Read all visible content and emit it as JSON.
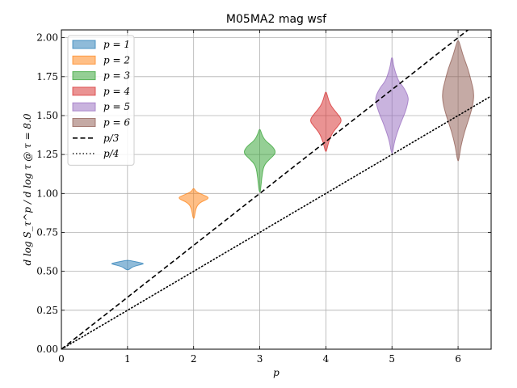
{
  "chart_data": {
    "type": "violin",
    "title": "M05MA2 mag wsf",
    "xlabel": "p",
    "ylabel": "d log S_τ^p / d log τ @ τ = 8.0",
    "xlim": [
      0,
      6.5
    ],
    "ylim": [
      0,
      2.05
    ],
    "xticks": [
      "0",
      "1",
      "2",
      "3",
      "4",
      "5",
      "6"
    ],
    "yticks": [
      "0.00",
      "0.25",
      "0.50",
      "0.75",
      "1.00",
      "1.25",
      "1.50",
      "1.75",
      "2.00"
    ],
    "grid": true,
    "legend_position": "top-left",
    "violins": [
      {
        "name": "p = 1",
        "position": 1,
        "min": 0.51,
        "max": 0.57,
        "median": 0.55,
        "color": "#1f77b4",
        "profile": [
          [
            0.51,
            0.02
          ],
          [
            0.53,
            0.08
          ],
          [
            0.545,
            0.22
          ],
          [
            0.55,
            0.25
          ],
          [
            0.56,
            0.15
          ],
          [
            0.57,
            0.02
          ]
        ]
      },
      {
        "name": "p = 2",
        "position": 2,
        "min": 0.84,
        "max": 1.03,
        "median": 0.97,
        "color": "#ff7f0e",
        "profile": [
          [
            0.84,
            0.01
          ],
          [
            0.9,
            0.03
          ],
          [
            0.94,
            0.08
          ],
          [
            0.97,
            0.25
          ],
          [
            0.99,
            0.15
          ],
          [
            1.01,
            0.04
          ],
          [
            1.03,
            0.01
          ]
        ]
      },
      {
        "name": "p = 3",
        "position": 3,
        "min": 1.01,
        "max": 1.41,
        "median": 1.26,
        "color": "#2ca02c",
        "profile": [
          [
            1.01,
            0.01
          ],
          [
            1.1,
            0.03
          ],
          [
            1.18,
            0.06
          ],
          [
            1.22,
            0.15
          ],
          [
            1.26,
            0.25
          ],
          [
            1.3,
            0.2
          ],
          [
            1.34,
            0.08
          ],
          [
            1.38,
            0.03
          ],
          [
            1.41,
            0.01
          ]
        ]
      },
      {
        "name": "p = 4",
        "position": 4,
        "min": 1.27,
        "max": 1.65,
        "median": 1.47,
        "color": "#d62728",
        "profile": [
          [
            1.27,
            0.01
          ],
          [
            1.33,
            0.04
          ],
          [
            1.39,
            0.1
          ],
          [
            1.43,
            0.18
          ],
          [
            1.47,
            0.25
          ],
          [
            1.52,
            0.16
          ],
          [
            1.56,
            0.08
          ],
          [
            1.6,
            0.04
          ],
          [
            1.65,
            0.01
          ]
        ]
      },
      {
        "name": "p = 5",
        "position": 5,
        "min": 1.26,
        "max": 1.87,
        "median": 1.61,
        "color": "#9467bd",
        "profile": [
          [
            1.26,
            0.01
          ],
          [
            1.34,
            0.04
          ],
          [
            1.44,
            0.12
          ],
          [
            1.52,
            0.2
          ],
          [
            1.58,
            0.24
          ],
          [
            1.62,
            0.25
          ],
          [
            1.68,
            0.18
          ],
          [
            1.72,
            0.1
          ],
          [
            1.78,
            0.05
          ],
          [
            1.83,
            0.02
          ],
          [
            1.87,
            0.01
          ]
        ]
      },
      {
        "name": "p = 6",
        "position": 6,
        "min": 1.21,
        "max": 1.98,
        "median": 1.6,
        "color": "#8c564b",
        "profile": [
          [
            1.21,
            0.01
          ],
          [
            1.3,
            0.04
          ],
          [
            1.4,
            0.1
          ],
          [
            1.5,
            0.18
          ],
          [
            1.58,
            0.23
          ],
          [
            1.65,
            0.24
          ],
          [
            1.72,
            0.2
          ],
          [
            1.8,
            0.15
          ],
          [
            1.88,
            0.08
          ],
          [
            1.94,
            0.04
          ],
          [
            1.98,
            0.01
          ]
        ]
      }
    ],
    "lines": [
      {
        "name": "p/3",
        "slope": 0.3333333,
        "style": "dashed",
        "color": "#000000"
      },
      {
        "name": "p/4",
        "slope": 0.25,
        "style": "dotted",
        "color": "#000000"
      }
    ],
    "legend": [
      {
        "label": "p = 1",
        "kind": "patch",
        "color": "#1f77b4"
      },
      {
        "label": "p = 2",
        "kind": "patch",
        "color": "#ff7f0e"
      },
      {
        "label": "p = 3",
        "kind": "patch",
        "color": "#2ca02c"
      },
      {
        "label": "p = 4",
        "kind": "patch",
        "color": "#d62728"
      },
      {
        "label": "p = 5",
        "kind": "patch",
        "color": "#9467bd"
      },
      {
        "label": "p = 6",
        "kind": "patch",
        "color": "#8c564b"
      },
      {
        "label": "p/3",
        "kind": "line",
        "style": "dashed",
        "color": "#000000"
      },
      {
        "label": "p/4",
        "kind": "line",
        "style": "dotted",
        "color": "#000000"
      }
    ]
  }
}
